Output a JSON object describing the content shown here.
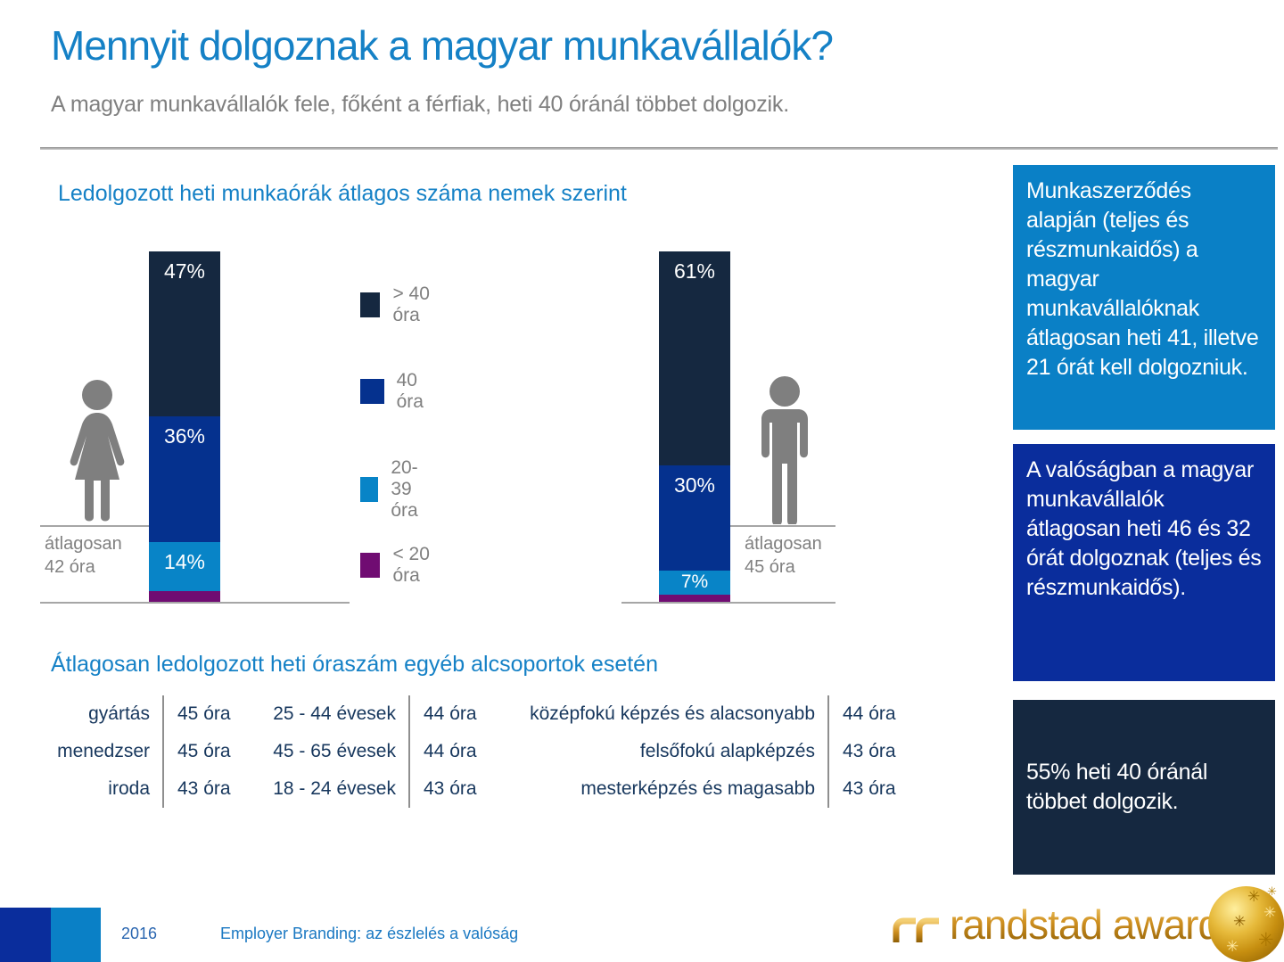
{
  "page": {
    "title": "Mennyit dolgoznak a magyar munkavállalók?",
    "subtitle": "A magyar munkavállalók fele, főként a férfiak, heti 40 óránál többet dolgozik."
  },
  "colors": {
    "accent_blue": "#1581c6",
    "navy": "#152840",
    "royal_blue": "#05318e",
    "light_blue": "#0884c7",
    "purple": "#700c72",
    "callout1_bg": "#0a80c6",
    "callout2_bg": "#0a2d9c",
    "callout3_bg": "#152840",
    "gray_text": "#7f7f7f",
    "table_text": "#17375d"
  },
  "chart_data": {
    "type": "bar",
    "stacked": true,
    "title": "Ledolgozott heti munkaórák átlagos száma nemek szerint",
    "unit": "%",
    "ylim": [
      0,
      100
    ],
    "legend_position": "center-between-bars",
    "legend": [
      {
        "label": "> 40 óra",
        "color": "#152840"
      },
      {
        "label": "40 óra",
        "color": "#05318e"
      },
      {
        "label": "20-39 óra",
        "color": "#0884c7"
      },
      {
        "label": "< 20 óra",
        "color": "#700c72"
      }
    ],
    "groups": [
      {
        "icon": "female-icon",
        "average_line1": "átlagosan",
        "average_line2": "42 óra",
        "segments": [
          {
            "label": "> 40 óra",
            "pct": 47,
            "display": "47%"
          },
          {
            "label": "40 óra",
            "pct": 36,
            "display": "36%"
          },
          {
            "label": "20-39 óra",
            "pct": 14,
            "display": "14%"
          },
          {
            "label": "< 20 óra",
            "pct": 3,
            "display": ""
          }
        ]
      },
      {
        "icon": "male-icon",
        "average_line1": "átlagosan",
        "average_line2": "45 óra",
        "segments": [
          {
            "label": "> 40 óra",
            "pct": 61,
            "display": "61%"
          },
          {
            "label": "40 óra",
            "pct": 30,
            "display": "30%"
          },
          {
            "label": "20-39 óra",
            "pct": 7,
            "display": "7%"
          },
          {
            "label": "< 20 óra",
            "pct": 2,
            "display": ""
          }
        ]
      }
    ]
  },
  "subgroups": {
    "title": "Átlagosan ledolgozott heti óraszám egyéb alcsoportok esetén",
    "tables": [
      {
        "rows": [
          {
            "label": "gyártás",
            "value": "45 óra"
          },
          {
            "label": "menedzser",
            "value": "45 óra"
          },
          {
            "label": "iroda",
            "value": "43 óra"
          }
        ]
      },
      {
        "rows": [
          {
            "label": "25 - 44 évesek",
            "value": "44 óra"
          },
          {
            "label": "45 - 65 évesek",
            "value": "44 óra"
          },
          {
            "label": "18 - 24 évesek",
            "value": "43 óra"
          }
        ]
      },
      {
        "rows": [
          {
            "label": "középfokú képzés és alacsonyabb",
            "value": "44 óra"
          },
          {
            "label": "felsőfokú alapképzés",
            "value": "43 óra"
          },
          {
            "label": "mesterképzés és magasabb",
            "value": "43 óra"
          }
        ]
      }
    ]
  },
  "callouts": [
    {
      "text": "Munkaszerződés alapján (teljes és részmunkaidős) a magyar munkavállalóknak átlagosan heti 41, illetve 21 órát kell dolgozniuk."
    },
    {
      "text": "A valóságban a magyar munkavállalók átlagosan heti 46 és 32 órát dolgoznak (teljes és részmunkaidős)."
    },
    {
      "text": "55% heti 40 óránál többet dolgozik."
    }
  ],
  "footer": {
    "year": "2016",
    "label": "Employer Branding: az észlelés  a valóság",
    "logo_text": "randstad award"
  }
}
